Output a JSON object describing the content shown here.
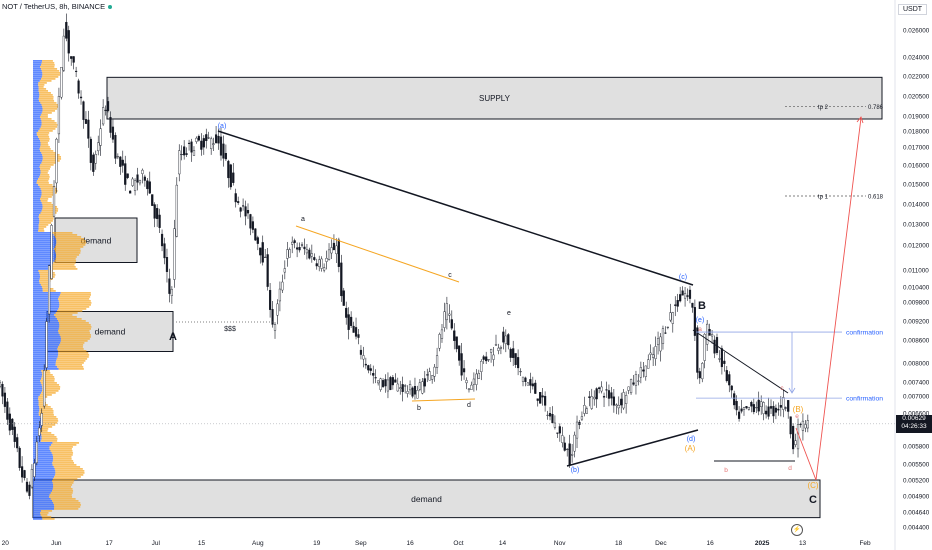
{
  "header": {
    "symbol": "NOT / TetherUS, 8h, BINANCE",
    "currency": "USDT"
  },
  "chart_data": {
    "type": "candlestick",
    "ylim": [
      0.0042,
      0.0274
    ],
    "y_ticks": [
      "0.026000",
      "0.024000",
      "0.022000",
      "0.020500",
      "0.019000",
      "0.018000",
      "0.017000",
      "0.016000",
      "0.015000",
      "0.014000",
      "0.013000",
      "0.012000",
      "0.011000",
      "0.010400",
      "0.009800",
      "0.009200",
      "0.008600",
      "0.008000",
      "0.007400",
      "0.007000",
      "0.006600",
      "0.006200",
      "0.005800",
      "0.005500",
      "0.005200",
      "0.004900",
      "0.004640",
      "0.004400"
    ],
    "y_tick_values": [
      0.026,
      0.024,
      0.022,
      0.0205,
      0.019,
      0.018,
      0.017,
      0.016,
      0.015,
      0.014,
      0.013,
      0.012,
      0.011,
      0.0104,
      0.0098,
      0.0092,
      0.0086,
      0.008,
      0.0074,
      0.007,
      0.0066,
      0.0062,
      0.0058,
      0.0055,
      0.0052,
      0.0049,
      0.00464,
      0.0044
    ],
    "x_ticks": [
      {
        "label": "20",
        "pos": 0.006
      },
      {
        "label": "Jun",
        "pos": 0.064
      },
      {
        "label": "17",
        "pos": 0.124
      },
      {
        "label": "Jul",
        "pos": 0.177
      },
      {
        "label": "15",
        "pos": 0.229
      },
      {
        "label": "Aug",
        "pos": 0.293
      },
      {
        "label": "19",
        "pos": 0.36
      },
      {
        "label": "Sep",
        "pos": 0.41
      },
      {
        "label": "16",
        "pos": 0.466
      },
      {
        "label": "Oct",
        "pos": 0.521
      },
      {
        "label": "14",
        "pos": 0.571
      },
      {
        "label": "Nov",
        "pos": 0.636
      },
      {
        "label": "18",
        "pos": 0.703
      },
      {
        "label": "Dec",
        "pos": 0.751
      },
      {
        "label": "16",
        "pos": 0.807
      },
      {
        "label": "2025",
        "pos": 0.866
      },
      {
        "label": "13",
        "pos": 0.912
      },
      {
        "label": "Feb",
        "pos": 0.983
      }
    ],
    "key_prices": [
      {
        "pos": 0.0,
        "price": 0.0075
      },
      {
        "pos": 0.02,
        "price": 0.0058
      },
      {
        "pos": 0.035,
        "price": 0.0049
      },
      {
        "pos": 0.05,
        "price": 0.0065
      },
      {
        "pos": 0.062,
        "price": 0.0135
      },
      {
        "pos": 0.075,
        "price": 0.0263
      },
      {
        "pos": 0.085,
        "price": 0.0235
      },
      {
        "pos": 0.1,
        "price": 0.0185
      },
      {
        "pos": 0.108,
        "price": 0.0155
      },
      {
        "pos": 0.122,
        "price": 0.02
      },
      {
        "pos": 0.135,
        "price": 0.0165
      },
      {
        "pos": 0.15,
        "price": 0.0148
      },
      {
        "pos": 0.168,
        "price": 0.0155
      },
      {
        "pos": 0.185,
        "price": 0.0125
      },
      {
        "pos": 0.197,
        "price": 0.0098
      },
      {
        "pos": 0.205,
        "price": 0.0165
      },
      {
        "pos": 0.225,
        "price": 0.0172
      },
      {
        "pos": 0.25,
        "price": 0.0175
      },
      {
        "pos": 0.27,
        "price": 0.0145
      },
      {
        "pos": 0.29,
        "price": 0.0128
      },
      {
        "pos": 0.305,
        "price": 0.0112
      },
      {
        "pos": 0.313,
        "price": 0.0088
      },
      {
        "pos": 0.33,
        "price": 0.012
      },
      {
        "pos": 0.35,
        "price": 0.0118
      },
      {
        "pos": 0.37,
        "price": 0.0112
      },
      {
        "pos": 0.385,
        "price": 0.0121
      },
      {
        "pos": 0.393,
        "price": 0.0095
      },
      {
        "pos": 0.41,
        "price": 0.0085
      },
      {
        "pos": 0.43,
        "price": 0.0074
      },
      {
        "pos": 0.455,
        "price": 0.0073
      },
      {
        "pos": 0.475,
        "price": 0.0071
      },
      {
        "pos": 0.495,
        "price": 0.0078
      },
      {
        "pos": 0.51,
        "price": 0.0096
      },
      {
        "pos": 0.525,
        "price": 0.008
      },
      {
        "pos": 0.535,
        "price": 0.0072
      },
      {
        "pos": 0.55,
        "price": 0.008
      },
      {
        "pos": 0.575,
        "price": 0.0087
      },
      {
        "pos": 0.595,
        "price": 0.0076
      },
      {
        "pos": 0.615,
        "price": 0.007
      },
      {
        "pos": 0.635,
        "price": 0.0062
      },
      {
        "pos": 0.65,
        "price": 0.0056
      },
      {
        "pos": 0.665,
        "price": 0.0067
      },
      {
        "pos": 0.685,
        "price": 0.0072
      },
      {
        "pos": 0.705,
        "price": 0.0068
      },
      {
        "pos": 0.725,
        "price": 0.0075
      },
      {
        "pos": 0.745,
        "price": 0.0082
      },
      {
        "pos": 0.765,
        "price": 0.0094
      },
      {
        "pos": 0.78,
        "price": 0.0102
      },
      {
        "pos": 0.79,
        "price": 0.0097
      },
      {
        "pos": 0.797,
        "price": 0.0073
      },
      {
        "pos": 0.805,
        "price": 0.009
      },
      {
        "pos": 0.825,
        "price": 0.0079
      },
      {
        "pos": 0.84,
        "price": 0.0065
      },
      {
        "pos": 0.86,
        "price": 0.0068
      },
      {
        "pos": 0.88,
        "price": 0.0066
      },
      {
        "pos": 0.895,
        "price": 0.0069
      },
      {
        "pos": 0.905,
        "price": 0.0058
      },
      {
        "pos": 0.912,
        "price": 0.0063
      },
      {
        "pos": 0.918,
        "price": 0.00629
      }
    ],
    "zones": [
      {
        "label": "SUPPLY",
        "top": 0.0219,
        "bottom": 0.0188
      },
      {
        "label": "demand",
        "top": 0.0133,
        "bottom": 0.0113
      },
      {
        "label": "demand",
        "top": 0.0095,
        "bottom": 0.0083
      },
      {
        "label": "demand",
        "top": 0.0052,
        "bottom": 0.00455
      }
    ],
    "fib_levels": [
      {
        "label": "tp 2",
        "ratio": "0.786",
        "price": 0.0197
      },
      {
        "label": "tp 1",
        "ratio": "0.618",
        "price": 0.0144
      }
    ],
    "confirmation_levels": [
      {
        "label": "confirmation",
        "price": 0.00885
      },
      {
        "label": "confirmation",
        "price": 0.00695
      }
    ],
    "annotations": {
      "dollars": "$$$",
      "wave_letters": [
        "a",
        "b",
        "c",
        "d",
        "e",
        "A",
        "B",
        "C"
      ],
      "wave_labels_paren": [
        "(a)",
        "(b)",
        "(c)",
        "(d)",
        "(e)",
        "(A)",
        "(B)",
        "(C)"
      ]
    },
    "current_price": "0.00629",
    "countdown": "04:26:33",
    "colors": {
      "candle": "#131722",
      "supply_fill": "#e0e0e0",
      "trendline": "#131722",
      "orange": "#f5a623",
      "blue_label": "#2962ff",
      "red_label": "#e57373",
      "projection": "#ef5350",
      "confirm": "#2962ff",
      "vp_blue": "#2962ff",
      "vp_orange": "#f5a623"
    }
  }
}
